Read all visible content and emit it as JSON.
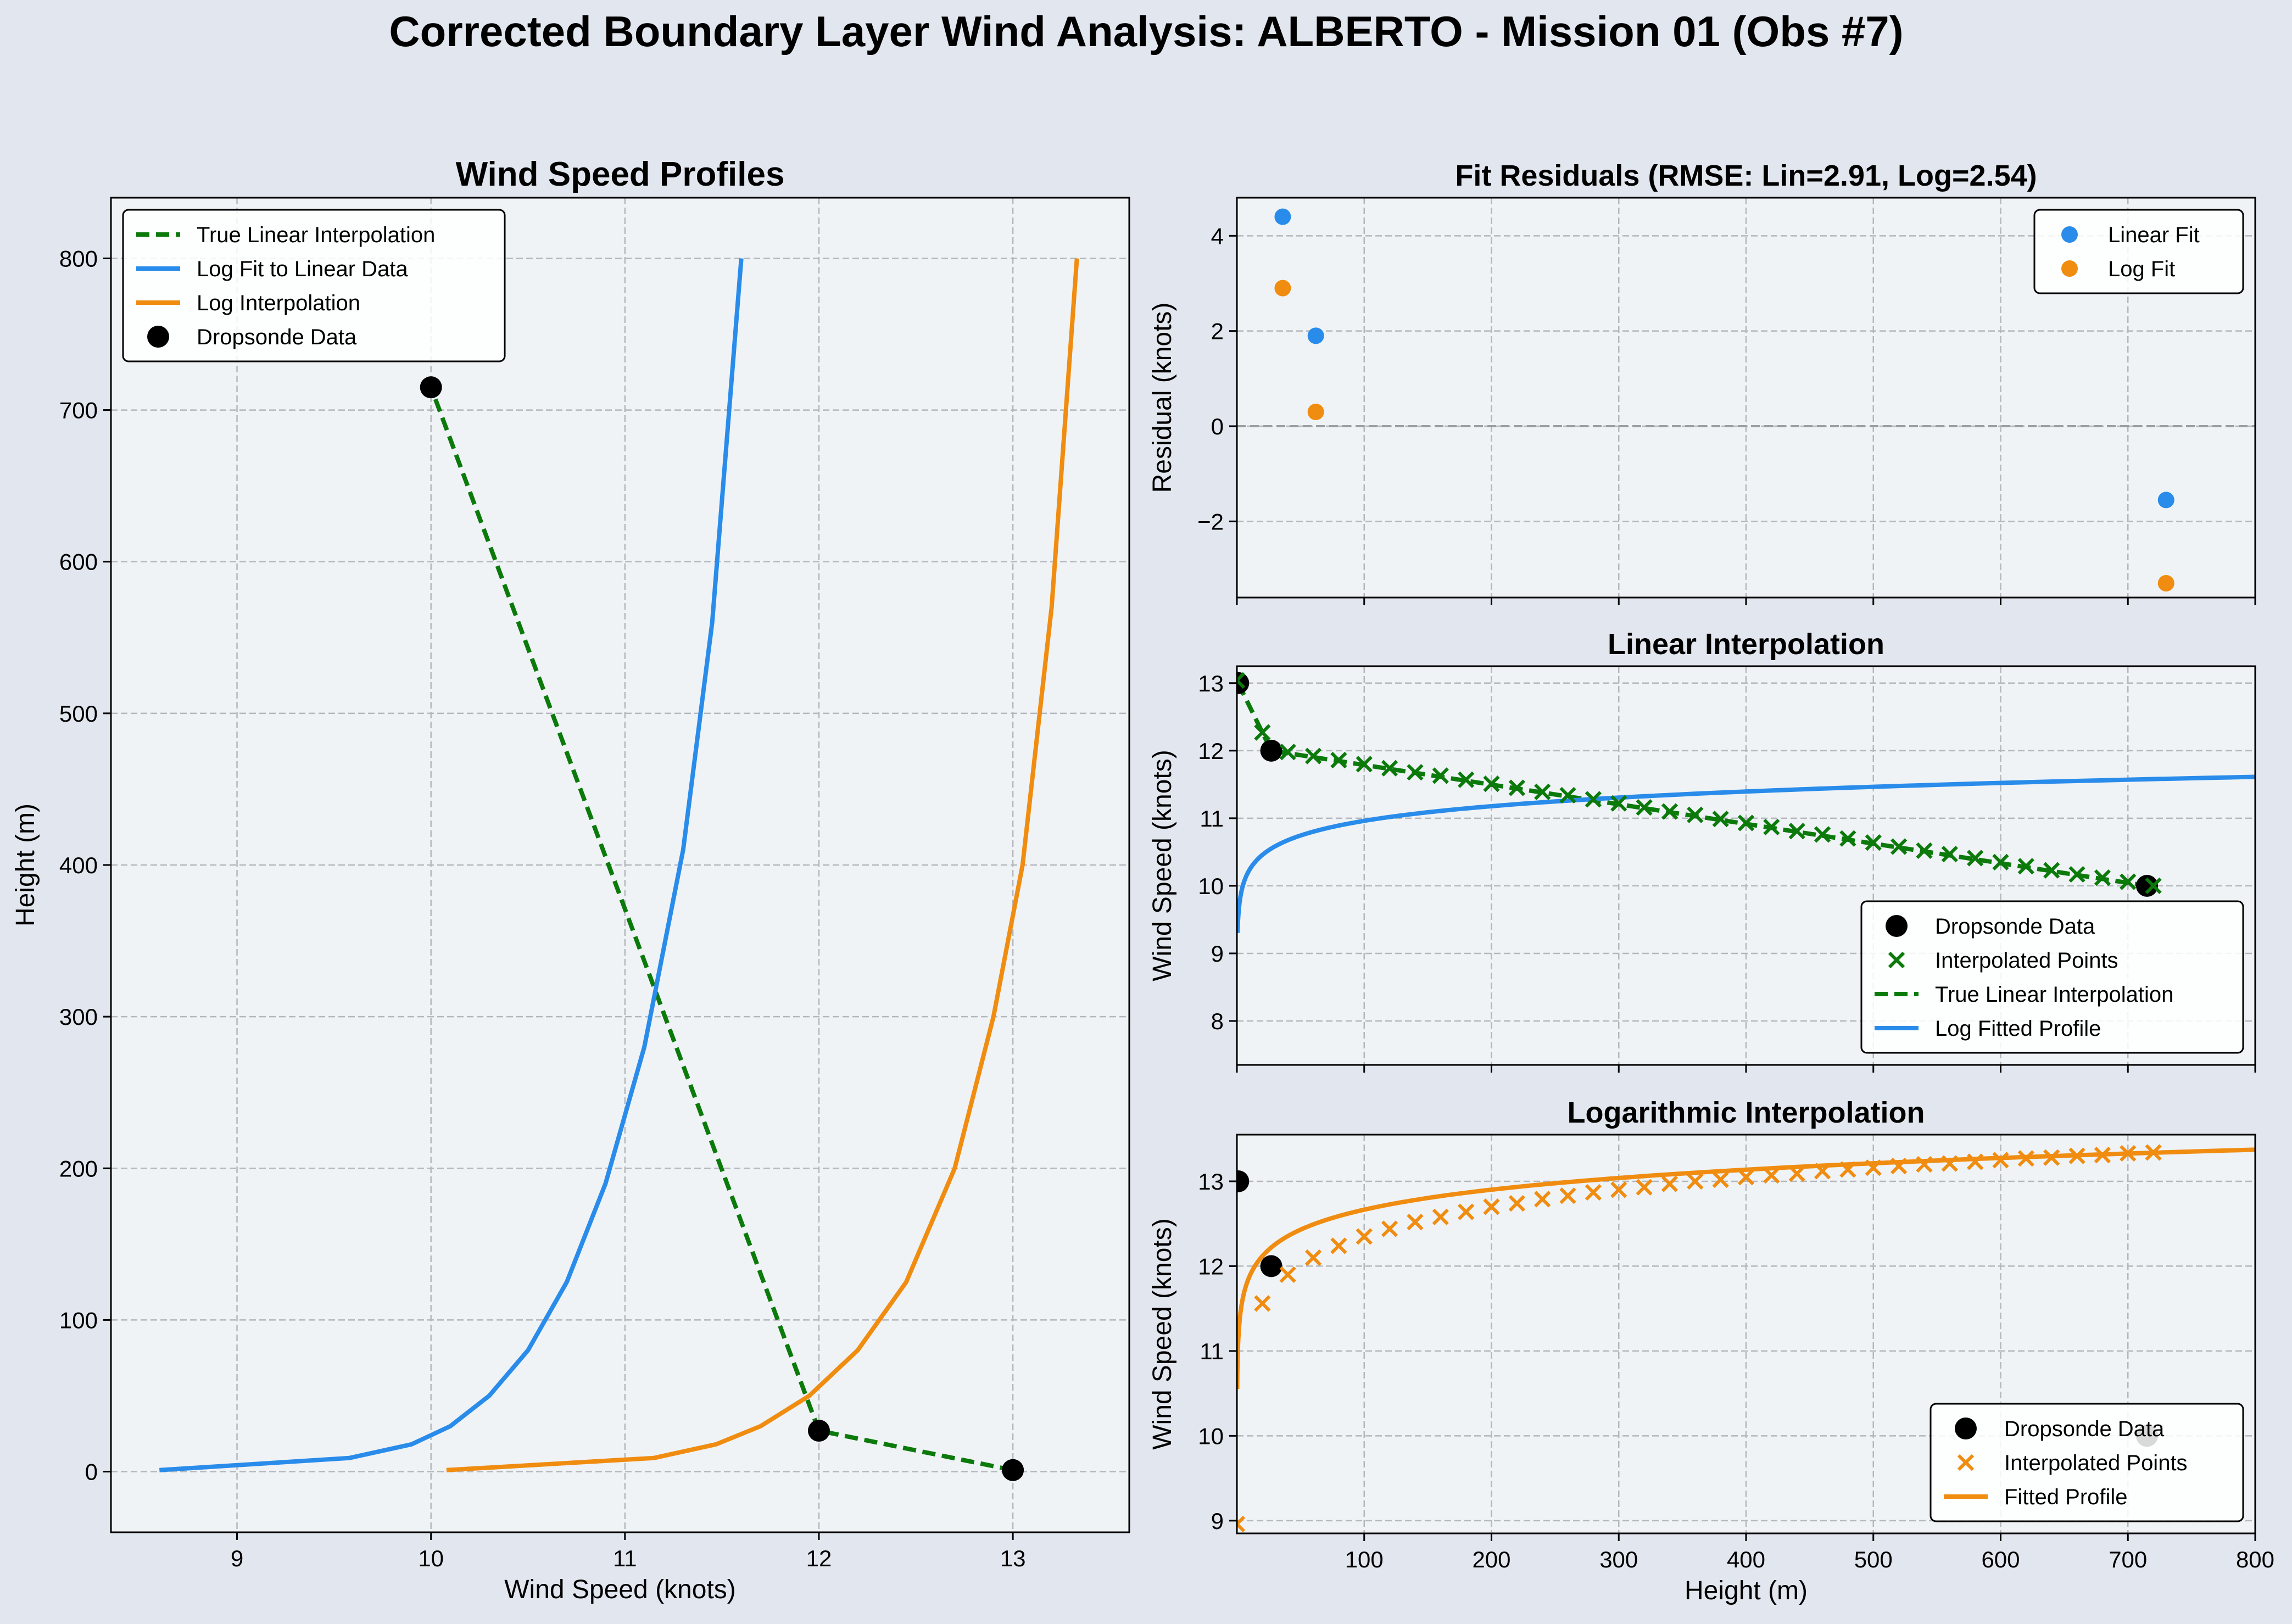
{
  "figure_title": "Corrected Boundary Layer Wind Analysis: ALBERTO - Mission 01 (Obs #7)",
  "colors": {
    "figure_bg": "#e2e6ee",
    "axes_bg": "#eff3f6",
    "green": "#0b7a0b",
    "blue": "#2a8cea",
    "orange": "#f08c10",
    "black": "#000000",
    "grid": "#b4b8bc"
  },
  "chart_data": [
    {
      "id": "profiles",
      "type": "line",
      "title": "Wind Speed Profiles",
      "xlabel": "Wind Speed (knots)",
      "ylabel": "Height (m)",
      "xlim": [
        8.35,
        13.6
      ],
      "ylim": [
        -40,
        840
      ],
      "xticks": [
        9,
        10,
        11,
        12,
        13
      ],
      "yticks": [
        0,
        100,
        200,
        300,
        400,
        500,
        600,
        700,
        800
      ],
      "grid": true,
      "legend_position": "upper-left",
      "series": [
        {
          "name": "True Linear Interpolation",
          "style": "dashed",
          "color": "green",
          "points": [
            [
              13,
              1
            ],
            [
              12,
              27
            ],
            [
              10,
              715
            ]
          ]
        },
        {
          "name": "Log Fit to Linear Data",
          "style": "solid",
          "color": "blue",
          "points": [
            [
              8.6,
              1
            ],
            [
              9.58,
              9
            ],
            [
              9.9,
              18
            ],
            [
              10.1,
              30
            ],
            [
              10.3,
              50
            ],
            [
              10.5,
              80
            ],
            [
              10.7,
              125
            ],
            [
              10.9,
              190
            ],
            [
              11.1,
              280
            ],
            [
              11.3,
              410
            ],
            [
              11.45,
              560
            ],
            [
              11.6,
              800
            ]
          ]
        },
        {
          "name": "Log Interpolation",
          "style": "solid",
          "color": "orange",
          "points": [
            [
              10.08,
              1
            ],
            [
              11.15,
              9
            ],
            [
              11.47,
              18
            ],
            [
              11.7,
              30
            ],
            [
              11.95,
              50
            ],
            [
              12.2,
              80
            ],
            [
              12.45,
              125
            ],
            [
              12.7,
              200
            ],
            [
              12.9,
              300
            ],
            [
              13.05,
              400
            ],
            [
              13.2,
              570
            ],
            [
              13.33,
              800
            ]
          ]
        },
        {
          "name": "Dropsonde Data",
          "style": "markers",
          "color": "black",
          "points": [
            [
              13,
              1
            ],
            [
              12,
              27
            ],
            [
              10,
              715
            ]
          ]
        }
      ]
    },
    {
      "id": "residuals",
      "type": "scatter",
      "title": "Fit Residuals (RMSE: Lin=2.91, Log=2.54)",
      "xlabel": "",
      "ylabel": "Residual (knots)",
      "xlim": [
        0,
        800
      ],
      "ylim": [
        -3.6,
        4.8
      ],
      "xticks": [
        0,
        100,
        200,
        300,
        400,
        500,
        600,
        700,
        800
      ],
      "yticks": [
        -2,
        0,
        2,
        4
      ],
      "ytick_labels": [
        "−2",
        "0",
        "2",
        "4"
      ],
      "grid": true,
      "zero_line": true,
      "legend_position": "upper-right",
      "series": [
        {
          "name": "Linear Fit",
          "color": "blue",
          "points": [
            [
              36,
              4.4
            ],
            [
              62,
              1.9
            ],
            [
              730,
              -1.55
            ]
          ]
        },
        {
          "name": "Log Fit",
          "color": "orange",
          "points": [
            [
              36,
              2.9
            ],
            [
              62,
              0.3
            ],
            [
              730,
              -3.3
            ]
          ]
        }
      ]
    },
    {
      "id": "linear",
      "type": "line",
      "title": "Linear Interpolation",
      "xlabel": "",
      "ylabel": "Wind Speed (knots)",
      "xlim": [
        0,
        800
      ],
      "ylim": [
        7.35,
        13.25
      ],
      "xticks": [
        0,
        100,
        200,
        300,
        400,
        500,
        600,
        700,
        800
      ],
      "yticks": [
        8,
        9,
        10,
        11,
        12,
        13
      ],
      "grid": true,
      "legend_position": "lower-right",
      "series": [
        {
          "name": "Dropsonde Data",
          "style": "markers",
          "color": "black",
          "points": [
            [
              1,
              13
            ],
            [
              27,
              12
            ],
            [
              715,
              10
            ]
          ]
        },
        {
          "name": "Interpolated Points",
          "style": "x",
          "color": "green",
          "x": [
            0,
            20,
            40,
            60,
            80,
            100,
            120,
            140,
            160,
            180,
            200,
            220,
            240,
            260,
            280,
            300,
            320,
            340,
            360,
            380,
            400,
            420,
            440,
            460,
            480,
            500,
            520,
            540,
            560,
            580,
            600,
            620,
            640,
            660,
            680,
            700,
            720
          ],
          "y": [
            13.04,
            12.27,
            11.98,
            11.92,
            11.86,
            11.8,
            11.74,
            11.68,
            11.63,
            11.57,
            11.51,
            11.45,
            11.39,
            11.34,
            11.28,
            11.22,
            11.16,
            11.1,
            11.05,
            10.99,
            10.93,
            10.87,
            10.81,
            10.76,
            10.7,
            10.64,
            10.58,
            10.52,
            10.47,
            10.41,
            10.35,
            10.29,
            10.23,
            10.17,
            10.12,
            10.06,
            10.0
          ]
        },
        {
          "name": "True Linear Interpolation",
          "style": "dashed",
          "color": "green",
          "points": [
            [
              1,
              13
            ],
            [
              27,
              12
            ],
            [
              715,
              10
            ],
            [
              720,
              9.99
            ]
          ]
        },
        {
          "name": "Log Fitted Profile",
          "style": "solid",
          "color": "blue",
          "log_fit": {
            "a": 9.52,
            "b": 0.313,
            "x_start": 0.5,
            "x_end": 800
          }
        }
      ]
    },
    {
      "id": "logarithmic",
      "type": "line",
      "title": "Logarithmic Interpolation",
      "xlabel": "Height (m)",
      "ylabel": "Wind Speed (knots)",
      "xlim": [
        0,
        800
      ],
      "ylim": [
        8.85,
        13.55
      ],
      "xticks": [
        100,
        200,
        300,
        400,
        500,
        600,
        700,
        800
      ],
      "yticks": [
        9,
        10,
        11,
        12,
        13
      ],
      "grid": true,
      "legend_position": "lower-right",
      "series": [
        {
          "name": "Dropsonde Data",
          "style": "markers",
          "color": "black",
          "points": [
            [
              1,
              13
            ],
            [
              27,
              12
            ],
            [
              715,
              10
            ]
          ]
        },
        {
          "name": "Interpolated Points",
          "style": "x",
          "color": "orange",
          "x": [
            0,
            20,
            40,
            60,
            80,
            100,
            120,
            140,
            160,
            180,
            200,
            220,
            240,
            260,
            280,
            300,
            320,
            340,
            360,
            380,
            400,
            420,
            440,
            460,
            480,
            500,
            520,
            540,
            560,
            580,
            600,
            620,
            640,
            660,
            680,
            700,
            720
          ],
          "y": [
            8.96,
            11.56,
            11.9,
            12.1,
            12.24,
            12.35,
            12.44,
            12.52,
            12.58,
            12.64,
            12.7,
            12.74,
            12.79,
            12.83,
            12.87,
            12.9,
            12.93,
            12.97,
            13.0,
            13.02,
            13.05,
            13.07,
            13.09,
            13.12,
            13.14,
            13.16,
            13.18,
            13.2,
            13.21,
            13.23,
            13.25,
            13.27,
            13.28,
            13.3,
            13.31,
            13.33,
            13.34
          ]
        },
        {
          "name": "Fitted Profile",
          "style": "solid",
          "color": "orange",
          "log_fit": {
            "a": 11.1,
            "b": 0.34,
            "x_start": 0.2,
            "x_end": 800
          }
        }
      ]
    }
  ]
}
